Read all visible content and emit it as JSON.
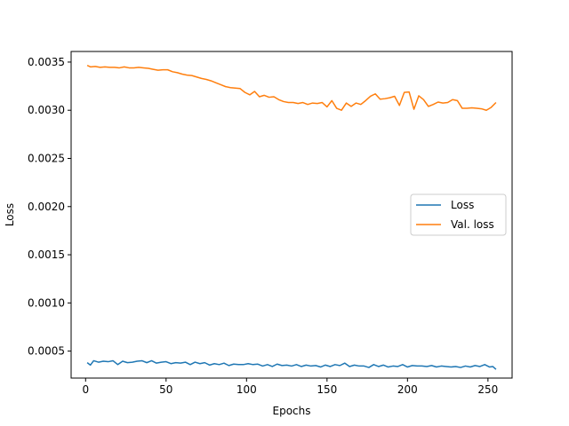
{
  "chart_data": {
    "type": "line",
    "title": "",
    "xlabel": "Epochs",
    "ylabel": "Loss",
    "xlim": [
      -9,
      265
    ],
    "ylim": [
      0.00022,
      0.00361
    ],
    "x_ticks": [
      0,
      50,
      100,
      150,
      200,
      250
    ],
    "x_tick_labels": [
      "0",
      "50",
      "100",
      "150",
      "200",
      "250"
    ],
    "y_ticks": [
      0.0005,
      0.001,
      0.0015,
      0.002,
      0.0025,
      0.003,
      0.0035
    ],
    "y_tick_labels": [
      "0.0005",
      "0.0010",
      "0.0015",
      "0.0020",
      "0.0025",
      "0.0030",
      "0.0035"
    ],
    "grid": false,
    "legend_position": "center-right",
    "series": [
      {
        "name": "Loss",
        "color": "#1f77b4",
        "x": [
          1,
          3,
          5,
          8,
          11,
          14,
          17,
          20,
          23,
          26,
          29,
          32,
          35,
          38,
          41,
          44,
          47,
          50,
          53,
          56,
          59,
          62,
          65,
          68,
          71,
          74,
          77,
          80,
          83,
          86,
          89,
          92,
          95,
          98,
          101,
          104,
          107,
          110,
          113,
          116,
          119,
          122,
          125,
          128,
          131,
          134,
          137,
          140,
          143,
          146,
          149,
          152,
          155,
          158,
          161,
          164,
          167,
          170,
          173,
          176,
          179,
          182,
          185,
          188,
          191,
          194,
          197,
          200,
          203,
          206,
          209,
          212,
          215,
          218,
          221,
          224,
          227,
          230,
          233,
          236,
          239,
          242,
          245,
          248,
          251,
          253,
          255
        ],
        "y": [
          0.00038,
          0.000355,
          0.0004,
          0.000385,
          0.000395,
          0.00039,
          0.0004,
          0.00036,
          0.000395,
          0.00038,
          0.000385,
          0.000395,
          0.0004,
          0.00038,
          0.0004,
          0.000375,
          0.000385,
          0.00039,
          0.00037,
          0.00038,
          0.000375,
          0.000385,
          0.00036,
          0.000385,
          0.00037,
          0.00038,
          0.000355,
          0.00037,
          0.00036,
          0.000375,
          0.00035,
          0.000365,
          0.00036,
          0.00036,
          0.00037,
          0.00036,
          0.000365,
          0.000345,
          0.00036,
          0.00034,
          0.000365,
          0.00035,
          0.000355,
          0.000345,
          0.00036,
          0.00034,
          0.000355,
          0.000345,
          0.00035,
          0.000335,
          0.000355,
          0.00034,
          0.00036,
          0.00035,
          0.000375,
          0.00034,
          0.000355,
          0.000345,
          0.000345,
          0.00033,
          0.00036,
          0.00034,
          0.000355,
          0.000335,
          0.000345,
          0.00034,
          0.00036,
          0.000335,
          0.00035,
          0.000345,
          0.000345,
          0.00034,
          0.00035,
          0.000335,
          0.000345,
          0.00034,
          0.000335,
          0.00034,
          0.00033,
          0.000345,
          0.000335,
          0.00035,
          0.00034,
          0.00036,
          0.000335,
          0.00034,
          0.00031
        ]
      },
      {
        "name": "Val. loss",
        "color": "#ff7f0e",
        "x": [
          1,
          3,
          6,
          9,
          12,
          15,
          18,
          21,
          24,
          27,
          30,
          33,
          36,
          39,
          42,
          45,
          48,
          51,
          54,
          57,
          60,
          63,
          66,
          69,
          72,
          75,
          78,
          81,
          84,
          87,
          90,
          93,
          96,
          99,
          102,
          105,
          108,
          111,
          114,
          117,
          120,
          123,
          126,
          129,
          132,
          135,
          138,
          141,
          144,
          147,
          150,
          153,
          156,
          159,
          162,
          165,
          168,
          171,
          174,
          177,
          180,
          183,
          186,
          189,
          192,
          195,
          198,
          201,
          204,
          207,
          210,
          213,
          216,
          219,
          222,
          225,
          228,
          231,
          234,
          237,
          240,
          243,
          246,
          249,
          252,
          255
        ],
        "y": [
          0.003465,
          0.00345,
          0.003455,
          0.003445,
          0.00345,
          0.003445,
          0.003445,
          0.00344,
          0.00345,
          0.00344,
          0.00344,
          0.003445,
          0.00344,
          0.003435,
          0.003425,
          0.003415,
          0.00342,
          0.00342,
          0.0034,
          0.00339,
          0.003375,
          0.003365,
          0.00336,
          0.003345,
          0.00333,
          0.00332,
          0.003305,
          0.003285,
          0.003265,
          0.003245,
          0.003235,
          0.00323,
          0.003225,
          0.003185,
          0.00316,
          0.003195,
          0.00314,
          0.003155,
          0.003135,
          0.00314,
          0.00311,
          0.00309,
          0.00308,
          0.00308,
          0.00307,
          0.00308,
          0.00306,
          0.003075,
          0.00307,
          0.00308,
          0.003035,
          0.0031,
          0.00302,
          0.003,
          0.003075,
          0.00304,
          0.003075,
          0.00306,
          0.0031,
          0.003145,
          0.00317,
          0.003115,
          0.00312,
          0.00313,
          0.003145,
          0.00305,
          0.003185,
          0.00319,
          0.00301,
          0.00315,
          0.00311,
          0.00304,
          0.00306,
          0.003085,
          0.003075,
          0.00308,
          0.00311,
          0.0031,
          0.00302,
          0.00302,
          0.003025,
          0.00302,
          0.003015,
          0.003,
          0.00303,
          0.00308
        ]
      }
    ]
  }
}
